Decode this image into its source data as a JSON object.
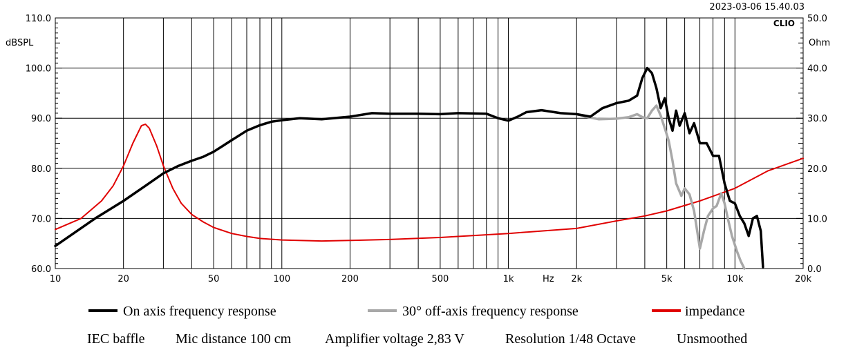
{
  "chart_data": {
    "type": "line",
    "timestamp": "2023-03-06 15.40.03",
    "brand": "CLIO",
    "x_scale": "log",
    "xlim": [
      10,
      20000
    ],
    "x_ticks": [
      {
        "v": 10,
        "label": "10"
      },
      {
        "v": 20,
        "label": "20"
      },
      {
        "v": 50,
        "label": "50"
      },
      {
        "v": 100,
        "label": "100"
      },
      {
        "v": 200,
        "label": "200"
      },
      {
        "v": 500,
        "label": "500"
      },
      {
        "v": 1000,
        "label": "1k"
      },
      {
        "v": 2000,
        "label": "2k"
      },
      {
        "v": 5000,
        "label": "5k"
      },
      {
        "v": 10000,
        "label": "10k"
      },
      {
        "v": 20000,
        "label": "20k"
      }
    ],
    "xlabel": "Hz",
    "xlabel_at": 1500,
    "y_left": {
      "unit": "dBSPL",
      "range": [
        60,
        110
      ],
      "ticks": [
        "60.0",
        "70.0",
        "80.0",
        "90.0",
        "100.0",
        "110.0"
      ]
    },
    "y_right": {
      "unit": "Ohm",
      "range": [
        0,
        50
      ],
      "ticks": [
        "0.0",
        "10.0",
        "20.0",
        "30.0",
        "40.0",
        "50.0"
      ]
    },
    "series": [
      {
        "name": "On axis frequency response",
        "color": "#000000",
        "axis": "left",
        "x": [
          10,
          15,
          20,
          25,
          30,
          35,
          40,
          45,
          50,
          55,
          60,
          70,
          80,
          90,
          100,
          120,
          150,
          200,
          250,
          300,
          400,
          500,
          600,
          800,
          900,
          1000,
          1100,
          1200,
          1400,
          1700,
          2000,
          2300,
          2600,
          3000,
          3400,
          3700,
          3900,
          4100,
          4300,
          4500,
          4700,
          4900,
          5100,
          5300,
          5500,
          5700,
          6000,
          6300,
          6600,
          7000,
          7500,
          8000,
          8500,
          9000,
          9500,
          10000,
          10500,
          11000,
          11500,
          12000,
          12500,
          13000,
          13300
        ],
        "values": [
          64.5,
          70,
          73.5,
          76.5,
          79,
          80.5,
          81.5,
          82.3,
          83.3,
          84.5,
          85.6,
          87.5,
          88.6,
          89.3,
          89.6,
          90.0,
          89.8,
          90.3,
          91.0,
          90.9,
          90.9,
          90.8,
          91.0,
          90.9,
          90.0,
          89.5,
          90.3,
          91.2,
          91.6,
          91.0,
          90.8,
          90.3,
          92.0,
          93.0,
          93.5,
          94.5,
          98,
          100,
          99,
          96,
          92,
          94,
          90,
          87.5,
          91.5,
          88.5,
          91,
          87,
          89,
          85,
          85,
          82.5,
          82.5,
          77,
          73.5,
          73,
          70.5,
          69,
          66.5,
          70,
          70.5,
          67.5,
          60.3
        ]
      },
      {
        "name": "30° off-axis frequency response",
        "color": "#a8a8a8",
        "axis": "left",
        "x": [
          2000,
          2200,
          2500,
          3000,
          3400,
          3700,
          3900,
          4100,
          4300,
          4500,
          4700,
          4900,
          5100,
          5300,
          5500,
          5800,
          6000,
          6300,
          6600,
          7000,
          7300,
          7600,
          8000,
          8300,
          8700,
          9000,
          9300,
          9700,
          10200,
          10600,
          11000
        ],
        "values": [
          90.8,
          90.3,
          89.8,
          89.9,
          90.2,
          90.8,
          90.2,
          90.0,
          91.5,
          92.5,
          90.5,
          88,
          85.5,
          81.5,
          77,
          74.5,
          76,
          74.8,
          71.5,
          64,
          67.5,
          70.5,
          72,
          72.5,
          75,
          73,
          70,
          66.5,
          63.5,
          61.5,
          60
        ]
      },
      {
        "name": "impedance",
        "color": "#e00000",
        "axis": "right",
        "x": [
          10,
          13,
          16,
          18,
          20,
          22,
          24,
          25,
          26,
          28,
          30,
          33,
          36,
          40,
          45,
          50,
          60,
          70,
          80,
          100,
          150,
          200,
          300,
          500,
          1000,
          2000,
          3000,
          4000,
          5000,
          7000,
          10000,
          14000,
          20000
        ],
        "values": [
          7.8,
          10,
          13.5,
          16.5,
          20.5,
          25,
          28.5,
          28.8,
          28,
          24.5,
          20.5,
          16,
          13,
          10.8,
          9.3,
          8.2,
          7.0,
          6.4,
          6.0,
          5.7,
          5.5,
          5.6,
          5.8,
          6.2,
          7.0,
          8.0,
          9.5,
          10.5,
          11.5,
          13.5,
          16.0,
          19.5,
          22.0
        ]
      }
    ],
    "notes": [
      "IEC baffle",
      "Mic distance 100 cm",
      "Amplifier voltage 2,83 V",
      "Resolution 1/48 Octave",
      "Unsmoothed"
    ]
  }
}
